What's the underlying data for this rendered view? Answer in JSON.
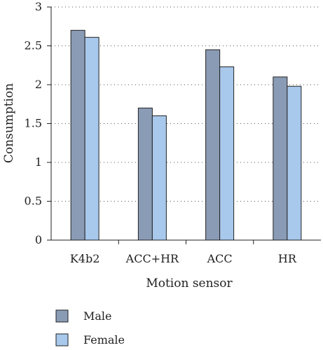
{
  "chart_data": {
    "type": "bar",
    "title": "",
    "xlabel": "Motion sensor",
    "ylabel": "Consumption",
    "categories": [
      "K4b2",
      "ACC+HR",
      "ACC",
      "HR"
    ],
    "series": [
      {
        "name": "Male",
        "values": [
          2.7,
          1.7,
          2.45,
          2.1
        ],
        "color": "#8a9bb5"
      },
      {
        "name": "Female",
        "values": [
          2.61,
          1.6,
          2.23,
          1.98
        ],
        "color": "#a8c8ec"
      }
    ],
    "ylim": [
      0,
      3
    ],
    "yticks": [
      "0",
      "0.5",
      "1",
      "1.5",
      "2",
      "2.5",
      "3"
    ],
    "grid": "horizontal dotted",
    "legend_position": "bottom-left"
  }
}
